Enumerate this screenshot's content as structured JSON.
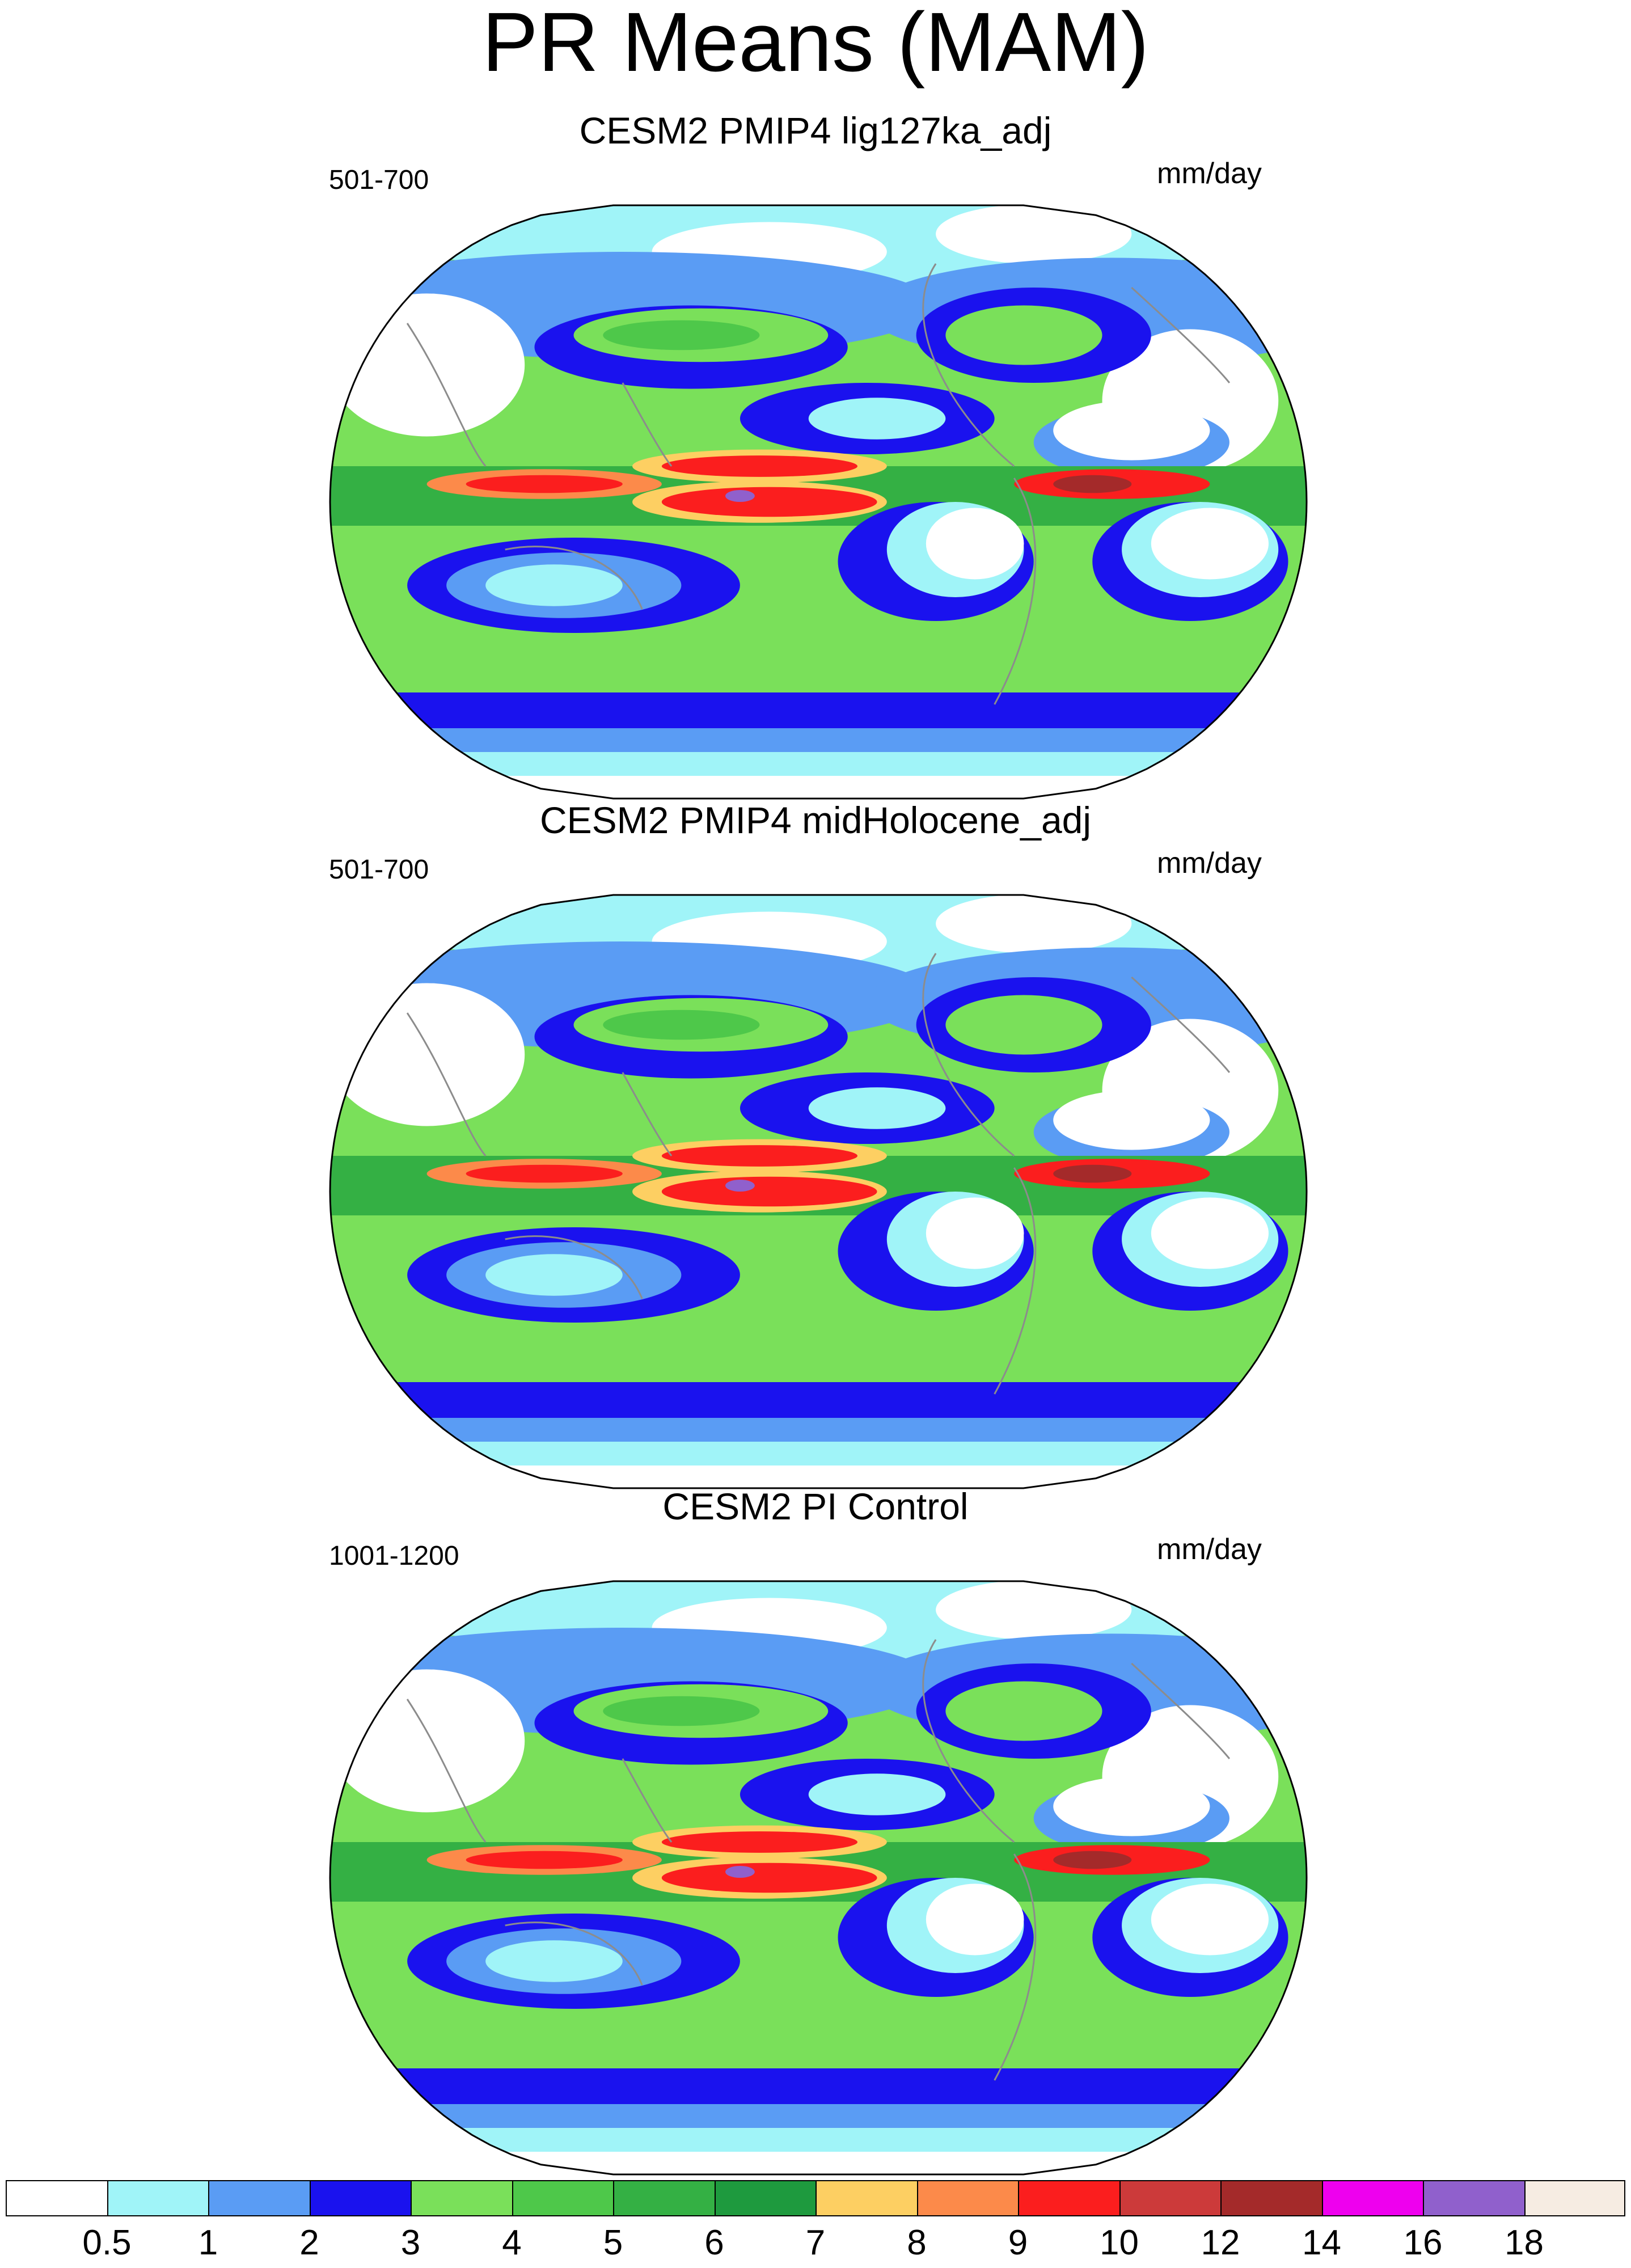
{
  "title": "PR Means (MAM)",
  "units": "mm/day",
  "panels": [
    {
      "title": "CESM2 PMIP4 lig127ka_adj",
      "period": "501-700",
      "units": "mm/day"
    },
    {
      "title": "CESM2 PMIP4 midHolocene_adj",
      "period": "501-700",
      "units": "mm/day"
    },
    {
      "title": "CESM2 PI Control",
      "period": "1001-1200",
      "units": "mm/day"
    }
  ],
  "colorbar": {
    "levels": [
      "0.5",
      "1",
      "2",
      "3",
      "4",
      "5",
      "6",
      "7",
      "8",
      "9",
      "10",
      "12",
      "14",
      "16",
      "18"
    ],
    "colors": [
      "#ffffff",
      "#a0f4f8",
      "#5a9cf4",
      "#1a12ee",
      "#7ae05a",
      "#4ec84a",
      "#34b044",
      "#1e9a3e",
      "#fdcf62",
      "#fc8a4a",
      "#fb1e1e",
      "#cc3a3a",
      "#a42a2a",
      "#ee00ee",
      "#9060cc",
      "#f6ece2"
    ]
  },
  "chart_data": {
    "type": "heatmap",
    "title": "PR Means (MAM)",
    "units": "mm/day",
    "projection": "Robinson",
    "contour_levels": [
      0.5,
      1,
      2,
      3,
      4,
      5,
      6,
      7,
      8,
      9,
      10,
      12,
      14,
      16,
      18
    ],
    "panels": [
      "CESM2 PMIP4 lig127ka_adj",
      "CESM2 PMIP4 midHolocene_adj",
      "CESM2 PI Control"
    ],
    "periods": [
      "501-700",
      "501-700",
      "1001-1200"
    ]
  }
}
